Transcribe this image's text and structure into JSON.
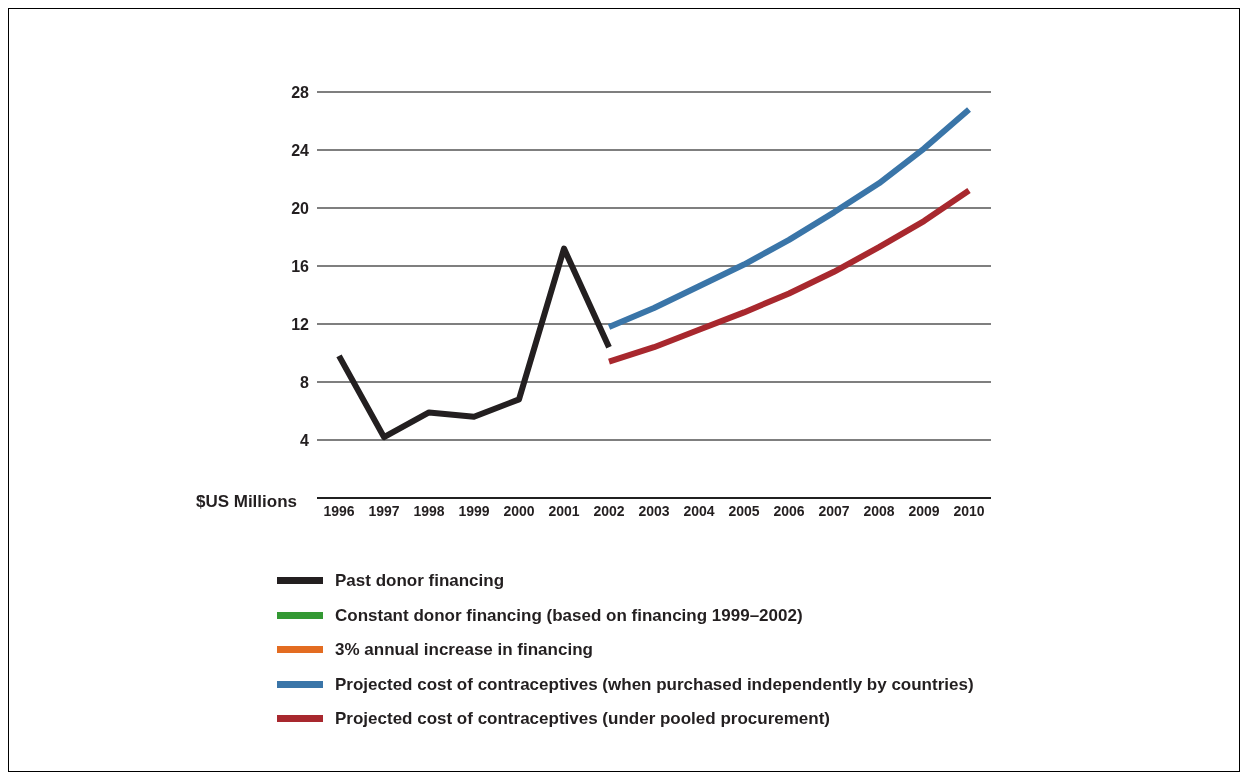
{
  "chart_data": {
    "type": "line",
    "ylabel": "$US Millions",
    "categories": [
      "1996",
      "1997",
      "1998",
      "1999",
      "2000",
      "2001",
      "2002",
      "2003",
      "2004",
      "2005",
      "2006",
      "2007",
      "2008",
      "2009",
      "2010"
    ],
    "series": [
      {
        "name": "Past donor financing",
        "color": "#231f20",
        "values": [
          9.8,
          4.2,
          5.9,
          5.6,
          6.8,
          17.2,
          10.4,
          null,
          null,
          null,
          null,
          null,
          null,
          null,
          null
        ]
      },
      {
        "name": "Constant donor financing (based on financing 1999–2002)",
        "color": "#339933",
        "values": [
          null,
          null,
          null,
          null,
          null,
          null,
          null,
          null,
          null,
          null,
          null,
          null,
          null,
          null,
          null
        ]
      },
      {
        "name": "3% annual increase in financing",
        "color": "#e36c21",
        "values": [
          null,
          null,
          null,
          null,
          null,
          null,
          null,
          null,
          null,
          null,
          null,
          null,
          null,
          null,
          null
        ]
      },
      {
        "name": "Projected cost of contraceptives (when purchased independently by countries)",
        "color": "#3a75a8",
        "values": [
          null,
          null,
          null,
          null,
          null,
          null,
          11.8,
          13.1,
          14.6,
          16.1,
          17.8,
          19.7,
          21.7,
          24.1,
          26.8
        ]
      },
      {
        "name": "Projected cost of contraceptives (under pooled procurement)",
        "color": "#a8282e",
        "values": [
          null,
          null,
          null,
          null,
          null,
          null,
          9.4,
          10.4,
          11.6,
          12.8,
          14.1,
          15.6,
          17.3,
          19.1,
          21.2
        ]
      }
    ],
    "ylim": [
      0,
      28
    ],
    "yticks": [
      4,
      8,
      12,
      16,
      20,
      24,
      28
    ],
    "grid": "y",
    "legend": "bottom",
    "marker": "none",
    "line_style": "solid"
  }
}
